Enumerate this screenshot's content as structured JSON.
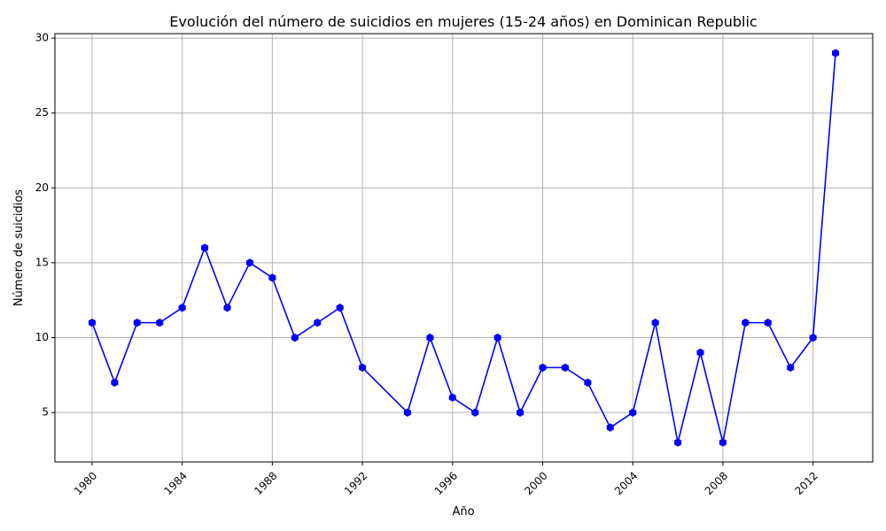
{
  "chart_data": {
    "type": "line",
    "title": "Evolución del número de suicidios en mujeres (15-24 años) en Dominican Republic",
    "xlabel": "Año",
    "ylabel": "Número de suicidios",
    "xlim": [
      1978.35,
      2014.65
    ],
    "ylim": [
      1.7,
      30.3
    ],
    "x_ticks": [
      1980,
      1984,
      1988,
      1992,
      1996,
      2000,
      2004,
      2008,
      2012
    ],
    "y_ticks": [
      5,
      10,
      15,
      20,
      25,
      30
    ],
    "grid": true,
    "series": [
      {
        "color": "#0000ff",
        "marker": "hexagon",
        "x": [
          1980,
          1981,
          1982,
          1983,
          1984,
          1985,
          1986,
          1987,
          1988,
          1989,
          1990,
          1991,
          1992,
          1994,
          1995,
          1996,
          1997,
          1998,
          1999,
          2000,
          2001,
          2002,
          2003,
          2004,
          2005,
          2006,
          2007,
          2008,
          2009,
          2010,
          2011,
          2012,
          2013
        ],
        "y": [
          11,
          7,
          11,
          11,
          12,
          16,
          12,
          15,
          14,
          10,
          11,
          12,
          8,
          5,
          10,
          6,
          5,
          10,
          5,
          8,
          8,
          7,
          4,
          5,
          11,
          3,
          9,
          3,
          11,
          11,
          8,
          10,
          29
        ]
      }
    ]
  }
}
